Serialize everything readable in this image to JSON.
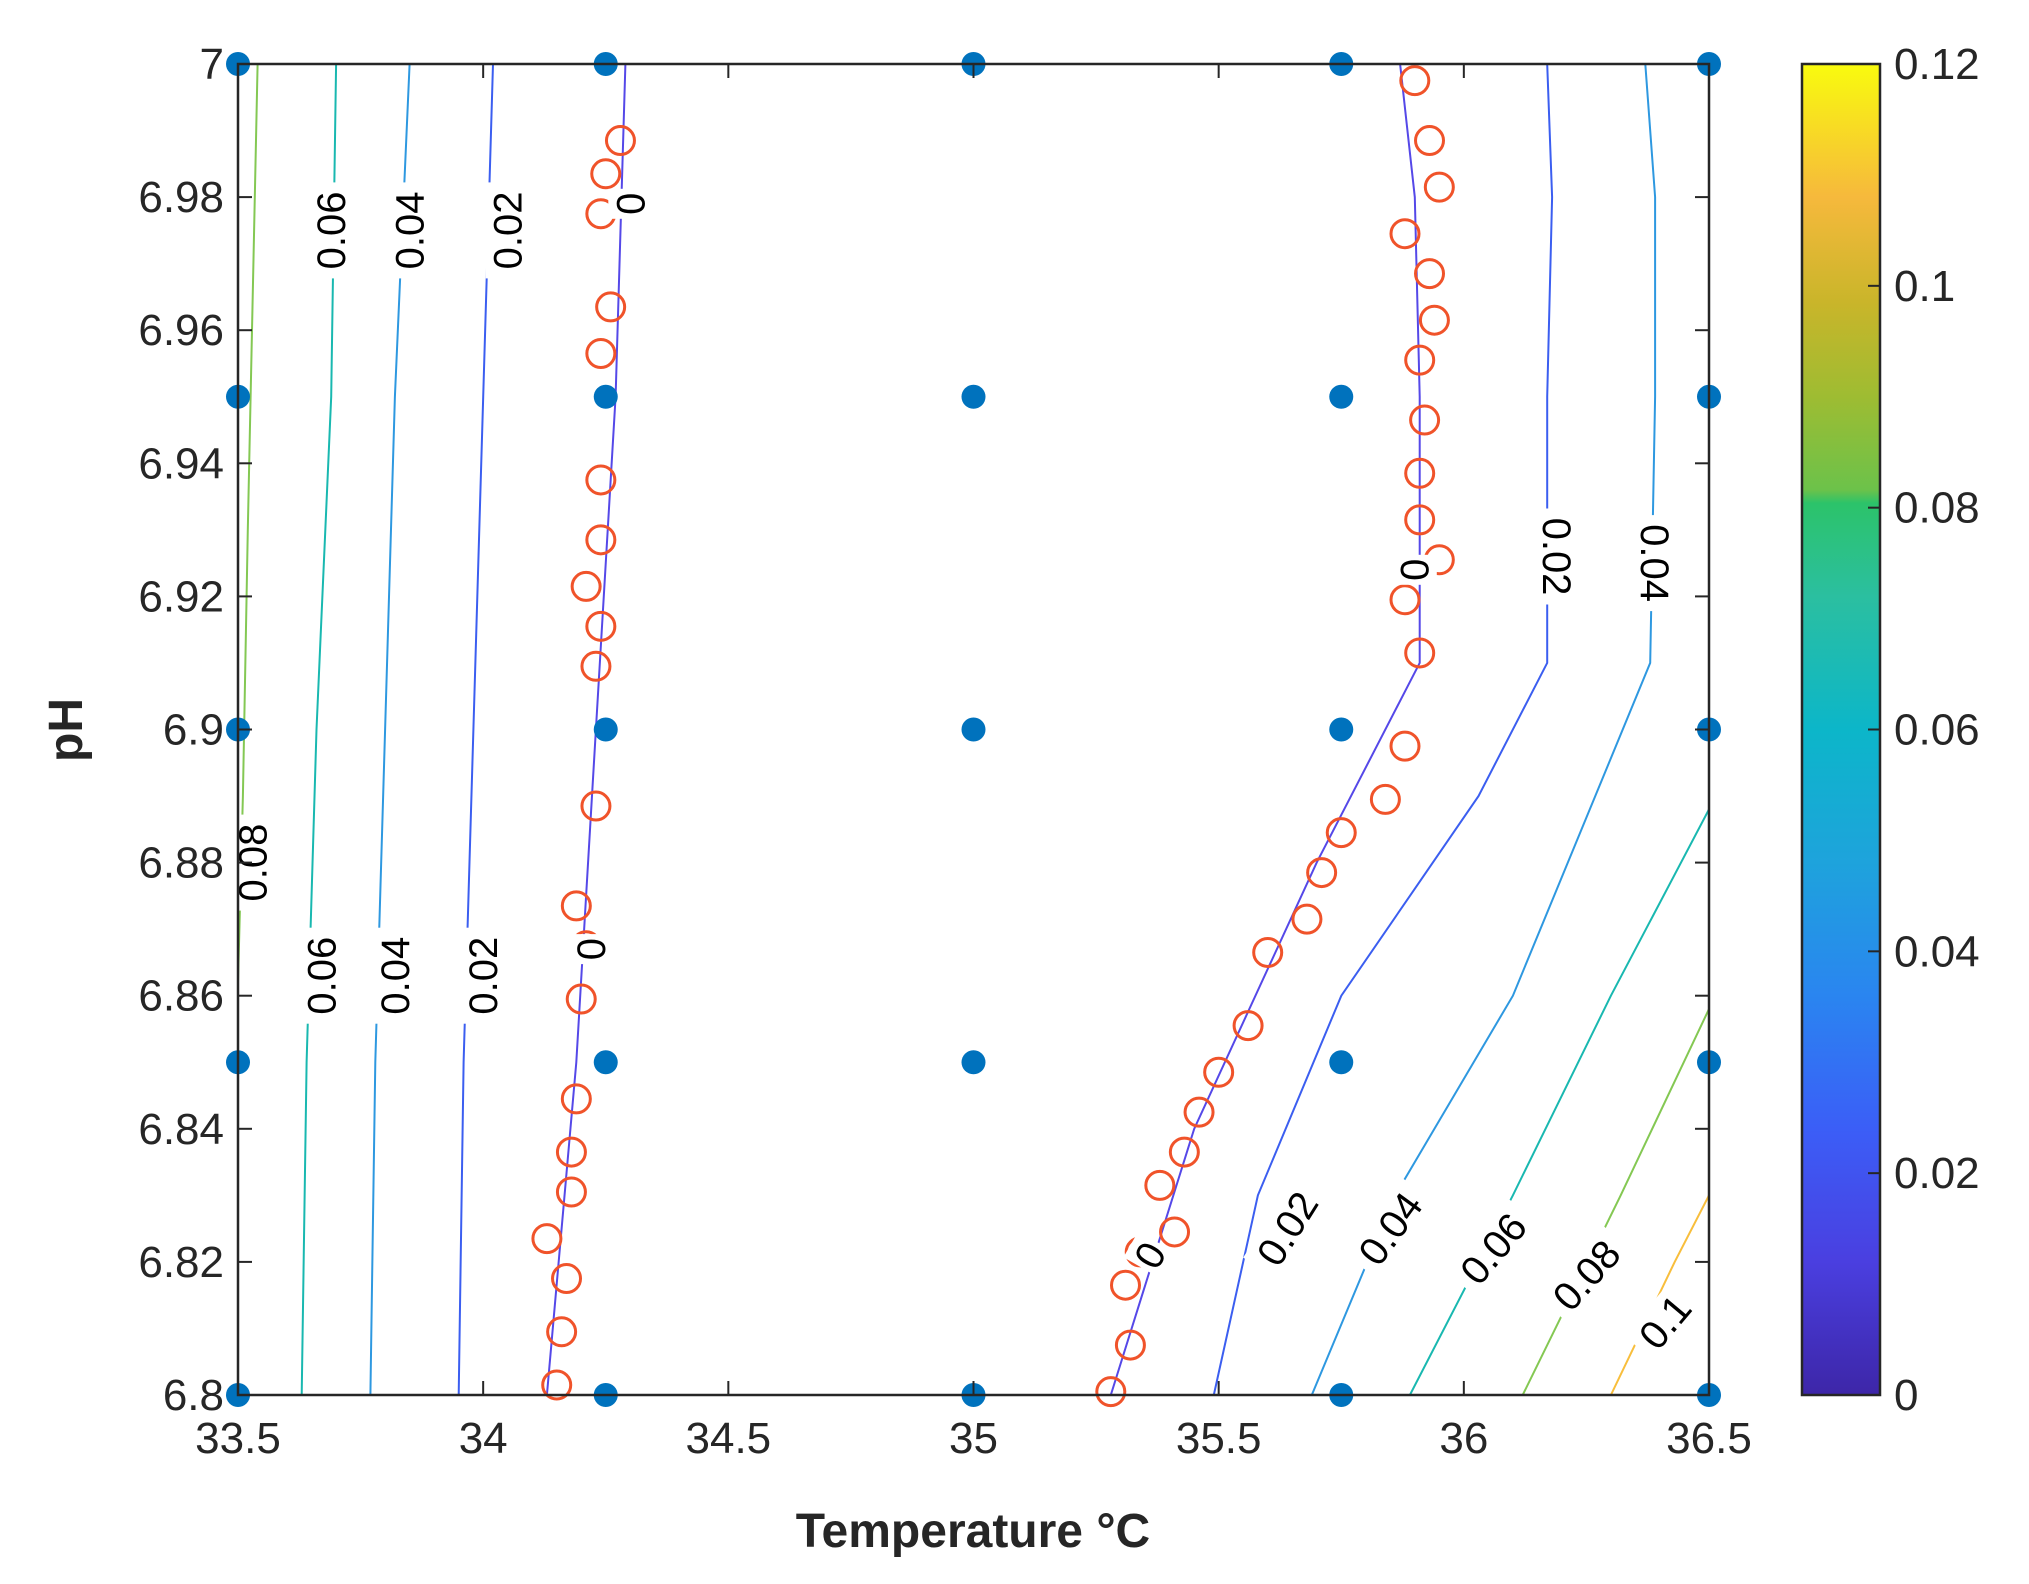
{
  "chart_data": {
    "type": "contour",
    "xlabel": "Temperature °C",
    "ylabel": "pH",
    "xlim": [
      33.5,
      36.5
    ],
    "ylim": [
      6.8,
      7.0
    ],
    "xticks": [
      33.5,
      34,
      34.5,
      35,
      35.5,
      36,
      36.5
    ],
    "xtick_labels": [
      "33.5",
      "34",
      "34.5",
      "35",
      "35.5",
      "36",
      "36.5"
    ],
    "yticks": [
      6.8,
      6.82,
      6.84,
      6.86,
      6.88,
      6.9,
      6.92,
      6.94,
      6.96,
      6.98,
      7.0
    ],
    "ytick_labels": [
      "6.8",
      "6.82",
      "6.84",
      "6.86",
      "6.88",
      "6.9",
      "6.92",
      "6.94",
      "6.96",
      "6.98",
      "7"
    ],
    "colorbar": {
      "range": [
        0,
        0.12
      ],
      "ticks": [
        0,
        0.02,
        0.04,
        0.06,
        0.08,
        0.1,
        0.12
      ],
      "tick_labels": [
        "0",
        "0.02",
        "0.04",
        "0.06",
        "0.08",
        "0.1",
        "0.12"
      ],
      "stops": [
        {
          "v": 0.0,
          "color": "#3d26a8"
        },
        {
          "v": 0.1,
          "color": "#4a3fe0"
        },
        {
          "v": 0.2,
          "color": "#3b5ef7"
        },
        {
          "v": 0.3,
          "color": "#2a85f0"
        },
        {
          "v": 0.4,
          "color": "#1ea3dc"
        },
        {
          "v": 0.5,
          "color": "#0cb6c9"
        },
        {
          "v": 0.6,
          "color": "#2bbfa0"
        },
        {
          "v": 0.67,
          "color": "#2cc36a"
        },
        {
          "v": 0.68,
          "color": "#6cc24a"
        },
        {
          "v": 0.75,
          "color": "#9ebc32"
        },
        {
          "v": 0.82,
          "color": "#c9b52a"
        },
        {
          "v": 0.9,
          "color": "#f6b93c"
        },
        {
          "v": 1.0,
          "color": "#f9fb0e"
        }
      ]
    },
    "design_points": {
      "color": "#0072bd",
      "points": [
        [
          33.5,
          6.8
        ],
        [
          34.25,
          6.8
        ],
        [
          35,
          6.8
        ],
        [
          35.75,
          6.8
        ],
        [
          36.5,
          6.8
        ],
        [
          33.5,
          6.85
        ],
        [
          34.25,
          6.85
        ],
        [
          35,
          6.85
        ],
        [
          35.75,
          6.85
        ],
        [
          36.5,
          6.85
        ],
        [
          33.5,
          6.9
        ],
        [
          34.25,
          6.9
        ],
        [
          35,
          6.9
        ],
        [
          35.75,
          6.9
        ],
        [
          36.5,
          6.9
        ],
        [
          33.5,
          6.95
        ],
        [
          34.25,
          6.95
        ],
        [
          35,
          6.95
        ],
        [
          35.75,
          6.95
        ],
        [
          36.5,
          6.95
        ],
        [
          33.5,
          7.0
        ],
        [
          34.25,
          7.0
        ],
        [
          35,
          7.0
        ],
        [
          35.75,
          7.0
        ],
        [
          36.5,
          7.0
        ]
      ]
    },
    "boundary_points": {
      "color": "#f0532a",
      "points": [
        [
          34.15,
          6.8015
        ],
        [
          34.16,
          6.8095
        ],
        [
          34.17,
          6.8175
        ],
        [
          34.13,
          6.8235
        ],
        [
          34.18,
          6.8305
        ],
        [
          34.18,
          6.8365
        ],
        [
          34.19,
          6.8445
        ],
        [
          34.2,
          6.8595
        ],
        [
          34.21,
          6.8675
        ],
        [
          34.19,
          6.8735
        ],
        [
          34.23,
          6.8885
        ],
        [
          34.23,
          6.9095
        ],
        [
          34.24,
          6.9155
        ],
        [
          34.21,
          6.9215
        ],
        [
          34.24,
          6.9285
        ],
        [
          34.24,
          6.9375
        ],
        [
          34.24,
          6.9565
        ],
        [
          34.26,
          6.9635
        ],
        [
          34.24,
          6.9775
        ],
        [
          34.25,
          6.9835
        ],
        [
          34.28,
          6.9885
        ],
        [
          35.28,
          6.8005
        ],
        [
          35.32,
          6.8075
        ],
        [
          35.31,
          6.8165
        ],
        [
          35.34,
          6.8215
        ],
        [
          35.41,
          6.8245
        ],
        [
          35.38,
          6.8315
        ],
        [
          35.43,
          6.8365
        ],
        [
          35.46,
          6.8425
        ],
        [
          35.5,
          6.8485
        ],
        [
          35.56,
          6.8555
        ],
        [
          35.6,
          6.8665
        ],
        [
          35.68,
          6.8715
        ],
        [
          35.71,
          6.8785
        ],
        [
          35.75,
          6.8845
        ],
        [
          35.84,
          6.8895
        ],
        [
          35.88,
          6.8975
        ],
        [
          35.91,
          6.9115
        ],
        [
          35.88,
          6.9195
        ],
        [
          35.95,
          6.9255
        ],
        [
          35.91,
          6.9315
        ],
        [
          35.91,
          6.9385
        ],
        [
          35.92,
          6.9465
        ],
        [
          35.91,
          6.9555
        ],
        [
          35.94,
          6.9615
        ],
        [
          35.93,
          6.9685
        ],
        [
          35.88,
          6.9745
        ],
        [
          35.95,
          6.9815
        ],
        [
          35.93,
          6.9885
        ],
        [
          35.9,
          6.9975
        ]
      ]
    },
    "contours": [
      {
        "level": 0.08,
        "label": "0.08",
        "color": "#84c853",
        "points": [
          [
            33.5,
            6.862
          ],
          [
            33.51,
            6.89
          ],
          [
            33.52,
            6.93
          ],
          [
            33.54,
            7.0
          ]
        ]
      },
      {
        "level": 0.06,
        "label": "0.06",
        "color": "#19b8b0",
        "points": [
          [
            33.63,
            6.8
          ],
          [
            33.64,
            6.85
          ],
          [
            33.66,
            6.9
          ],
          [
            33.69,
            6.95
          ],
          [
            33.7,
            7.0
          ]
        ]
      },
      {
        "level": 0.04,
        "label": "0.04",
        "color": "#2e98e0",
        "points": [
          [
            33.77,
            6.8
          ],
          [
            33.78,
            6.85
          ],
          [
            33.8,
            6.9
          ],
          [
            33.82,
            6.95
          ],
          [
            33.85,
            7.0
          ]
        ]
      },
      {
        "level": 0.02,
        "label": "0.02",
        "color": "#3b5ef0",
        "points": [
          [
            33.95,
            6.8
          ],
          [
            33.96,
            6.85
          ],
          [
            33.98,
            6.9
          ],
          [
            34.0,
            6.95
          ],
          [
            34.02,
            7.0
          ]
        ]
      },
      {
        "level": 0,
        "label": "0",
        "color": "#5548e8",
        "points": [
          [
            34.13,
            6.8
          ],
          [
            34.19,
            6.85
          ],
          [
            34.23,
            6.9
          ],
          [
            34.27,
            6.95
          ],
          [
            34.29,
            7.0
          ]
        ]
      },
      {
        "level": 0,
        "label": "0",
        "color": "#5548e8",
        "points": [
          [
            35.28,
            6.8
          ],
          [
            35.45,
            6.84
          ],
          [
            35.7,
            6.88
          ],
          [
            35.91,
            6.91
          ],
          [
            35.91,
            6.95
          ],
          [
            35.9,
            6.98
          ],
          [
            35.87,
            7.0
          ]
        ]
      },
      {
        "level": 0.02,
        "label": "0.02",
        "color": "#3b5ef0",
        "points": [
          [
            35.49,
            6.8
          ],
          [
            35.58,
            6.83
          ],
          [
            35.75,
            6.86
          ],
          [
            36.03,
            6.89
          ],
          [
            36.17,
            6.91
          ],
          [
            36.17,
            6.95
          ],
          [
            36.18,
            6.98
          ],
          [
            36.17,
            7.0
          ]
        ]
      },
      {
        "level": 0.04,
        "label": "0.04",
        "color": "#2e98e0",
        "points": [
          [
            35.69,
            6.8
          ],
          [
            35.86,
            6.83
          ],
          [
            36.1,
            6.86
          ],
          [
            36.38,
            6.91
          ],
          [
            36.39,
            6.95
          ],
          [
            36.39,
            6.98
          ],
          [
            36.37,
            7.0
          ]
        ]
      },
      {
        "level": 0.06,
        "label": "0.06",
        "color": "#19b8b0",
        "points": [
          [
            35.89,
            6.8
          ],
          [
            36.1,
            6.83
          ],
          [
            36.3,
            6.86
          ],
          [
            36.5,
            6.888
          ]
        ]
      },
      {
        "level": 0.08,
        "label": "0.08",
        "color": "#84c853",
        "points": [
          [
            36.12,
            6.8
          ],
          [
            36.32,
            6.83
          ],
          [
            36.5,
            6.858
          ]
        ]
      },
      {
        "level": 0.1,
        "label": "0.1",
        "color": "#f8be3c",
        "points": [
          [
            36.3,
            6.8
          ],
          [
            36.43,
            6.82
          ],
          [
            36.5,
            6.83
          ]
        ]
      }
    ],
    "contour_labels": [
      {
        "text": "0.06",
        "x": 33.69,
        "y": 6.975,
        "angle": -90
      },
      {
        "text": "0.04",
        "x": 33.85,
        "y": 6.975,
        "angle": -90
      },
      {
        "text": "0.02",
        "x": 34.05,
        "y": 6.975,
        "angle": -90
      },
      {
        "text": "0",
        "x": 34.3,
        "y": 6.979,
        "angle": -90
      },
      {
        "text": "0.08",
        "x": 33.53,
        "y": 6.88,
        "angle": -90
      },
      {
        "text": "0.06",
        "x": 33.67,
        "y": 6.863,
        "angle": -90
      },
      {
        "text": "0.04",
        "x": 33.82,
        "y": 6.863,
        "angle": -90
      },
      {
        "text": "0.02",
        "x": 34.0,
        "y": 6.863,
        "angle": -90
      },
      {
        "text": "0",
        "x": 34.22,
        "y": 6.867,
        "angle": -90
      },
      {
        "text": "0",
        "x": 35.9,
        "y": 6.924,
        "angle": 90
      },
      {
        "text": "0.02",
        "x": 36.19,
        "y": 6.926,
        "angle": 90
      },
      {
        "text": "0.04",
        "x": 36.39,
        "y": 6.925,
        "angle": 90
      },
      {
        "text": "0",
        "x": 35.36,
        "y": 6.821,
        "angle": -60
      },
      {
        "text": "0.02",
        "x": 35.64,
        "y": 6.825,
        "angle": -58
      },
      {
        "text": "0.04",
        "x": 35.85,
        "y": 6.825,
        "angle": -54
      },
      {
        "text": "0.06",
        "x": 36.06,
        "y": 6.822,
        "angle": -50
      },
      {
        "text": "0.08",
        "x": 36.25,
        "y": 6.818,
        "angle": -48
      },
      {
        "text": "0.1",
        "x": 36.41,
        "y": 6.811,
        "angle": -50
      }
    ]
  }
}
